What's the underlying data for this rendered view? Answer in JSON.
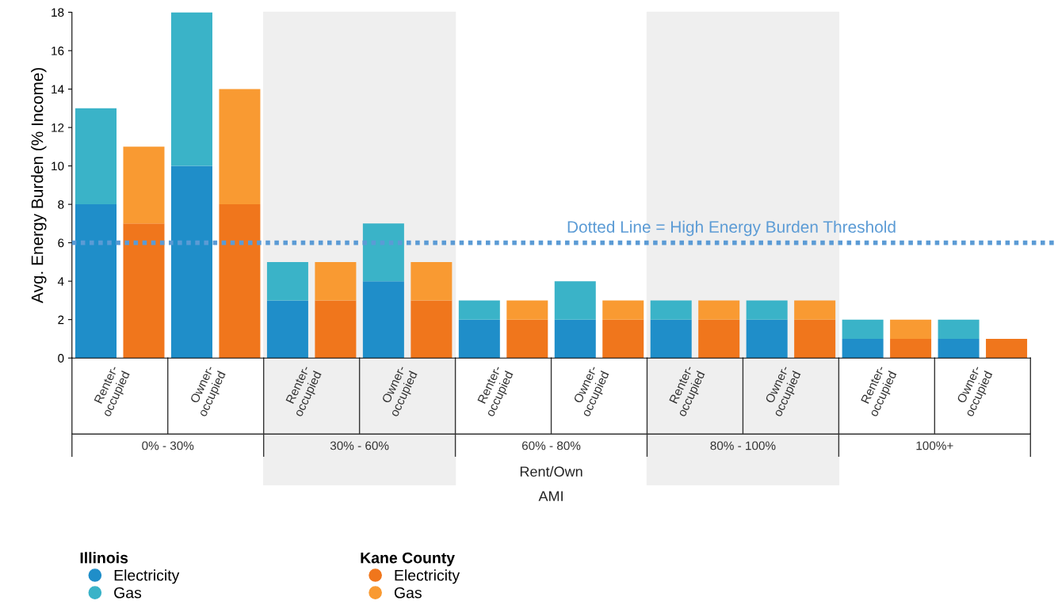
{
  "chart_data": {
    "type": "bar",
    "stacked": true,
    "ylabel": "Avg. Energy Burden (% Income)",
    "xlabel": "Rent/Own",
    "categories": [
      "Renter-occupied",
      null,
      "Owner-occupied",
      null,
      "Renter-occupied",
      null,
      "Owner-occupied",
      null,
      "Renter-occupied",
      null,
      "Owner-occupied",
      null,
      "Renter-occupied",
      null,
      "Owner-occupied",
      null,
      "Renter-occupied",
      null,
      "Owner-occupied",
      null
    ],
    "series": [
      {
        "name": "Electricity",
        "color": "#1f8ec9",
        "values": [
          8,
          null,
          10,
          null,
          3,
          null,
          4,
          null,
          2,
          null,
          2,
          null,
          2,
          null,
          2,
          null,
          1,
          null,
          1,
          null
        ]
      },
      {
        "name": "Gas",
        "color": "#3ab3c8",
        "values": [
          5,
          null,
          8,
          null,
          2,
          null,
          3,
          null,
          1,
          null,
          2,
          null,
          1,
          null,
          1,
          null,
          1,
          null,
          1,
          null
        ]
      },
      {
        "name": "Electricity",
        "color": "#f0761c",
        "values": [
          null,
          7,
          null,
          8,
          null,
          3,
          null,
          3,
          null,
          2,
          null,
          2,
          null,
          2,
          null,
          2,
          null,
          1,
          null,
          1
        ]
      },
      {
        "name": "Gas",
        "color": "#f99a32",
        "values": [
          null,
          4,
          null,
          6,
          null,
          2,
          null,
          2,
          null,
          1,
          null,
          1,
          null,
          1,
          null,
          1,
          null,
          1,
          null,
          0
        ]
      }
    ],
    "ylim": [
      0,
      18
    ],
    "yticks": [
      0,
      2,
      4,
      6,
      8,
      10,
      12,
      14,
      16,
      18
    ],
    "grid": false,
    "legend": "bottom left",
    "annotations": [
      "0% - 30%",
      "30% - 60%",
      "60% - 80%",
      "80% - 100%",
      "100%+",
      "AMI",
      "Illinois",
      "Kane County"
    ],
    "ref_lines": [
      {
        "axis": "y",
        "value": 6,
        "label": "Dotted Line = High Energy Burden Threshold",
        "color": "#5b9bd5",
        "line_style": "dotted"
      }
    ]
  }
}
